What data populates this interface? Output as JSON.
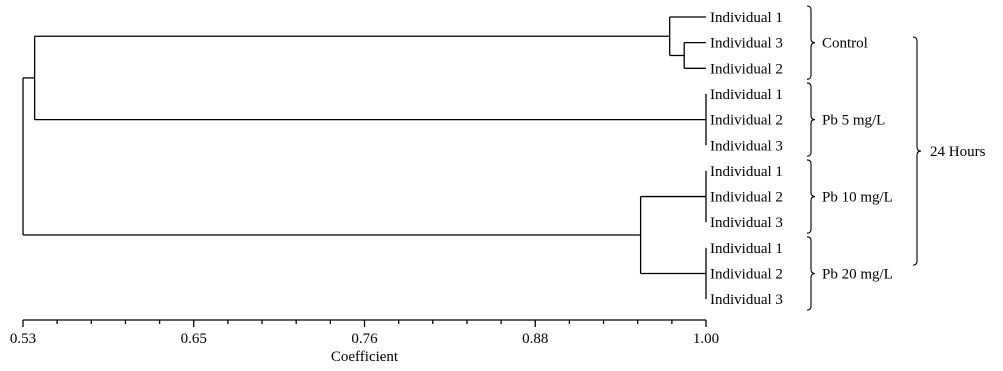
{
  "figure": {
    "leaves": [
      {
        "label": "Individual 1",
        "group": "Control"
      },
      {
        "label": "Individual 3",
        "group": "Control"
      },
      {
        "label": "Individual 2",
        "group": "Control"
      },
      {
        "label": "Individual 1",
        "group": "Pb 5 mg/L"
      },
      {
        "label": "Individual 2",
        "group": "Pb 5 mg/L"
      },
      {
        "label": "Individual 3",
        "group": "Pb 5 mg/L"
      },
      {
        "label": "Individual 1",
        "group": "Pb 10 mg/L"
      },
      {
        "label": "Individual 2",
        "group": "Pb 10 mg/L"
      },
      {
        "label": "Individual 3",
        "group": "Pb 10 mg/L"
      },
      {
        "label": "Individual 1",
        "group": "Pb 20 mg/L"
      },
      {
        "label": "Individual 2",
        "group": "Pb 20 mg/L"
      },
      {
        "label": "Individual 3",
        "group": "Pb 20 mg/L"
      }
    ],
    "groups": [
      {
        "name": "Control",
        "members": [
          0,
          1,
          2
        ]
      },
      {
        "name": "Pb 5 mg/L",
        "members": [
          3,
          4,
          5
        ]
      },
      {
        "name": "Pb 10 mg/L",
        "members": [
          6,
          7,
          8
        ]
      },
      {
        "name": "Pb 20 mg/L",
        "members": [
          9,
          10,
          11
        ]
      }
    ],
    "outer_group": {
      "name": "24 Hours",
      "members": [
        0,
        1,
        2,
        3,
        4,
        5,
        6,
        7,
        8,
        9,
        10,
        11
      ]
    },
    "clusters": [
      {
        "id": "c_ctrl_13",
        "children": [
          "leaf1",
          "leaf2"
        ],
        "coefficient": 0.985
      },
      {
        "id": "c_ctrl",
        "children": [
          "leaf0",
          "c_ctrl_13"
        ],
        "coefficient": 0.975
      },
      {
        "id": "c_pb5",
        "children": [
          "leaf3",
          "leaf4",
          "leaf5"
        ],
        "coefficient": 1.0
      },
      {
        "id": "c_pb10",
        "children": [
          "leaf6",
          "leaf7",
          "leaf8"
        ],
        "coefficient": 1.0
      },
      {
        "id": "c_pb20",
        "children": [
          "leaf9",
          "leaf10",
          "leaf11"
        ],
        "coefficient": 1.0
      },
      {
        "id": "c_ctrl_pb5",
        "children": [
          "c_ctrl",
          "c_pb5"
        ],
        "coefficient": 0.538
      },
      {
        "id": "c_pb10_pb20",
        "children": [
          "c_pb10",
          "c_pb20"
        ],
        "coefficient": 0.955
      },
      {
        "id": "c_root",
        "children": [
          "c_ctrl_pb5",
          "c_pb10_pb20"
        ],
        "coefficient": 0.53
      }
    ],
    "axis": {
      "title": "Coefficient",
      "range": [
        0.53,
        1.0
      ],
      "ticks": [
        {
          "value": 0.53,
          "label": "0.53"
        },
        {
          "value": 0.6475,
          "label": "0.65"
        },
        {
          "value": 0.765,
          "label": "0.76"
        },
        {
          "value": 0.8825,
          "label": "0.88"
        },
        {
          "value": 1.0,
          "label": "1.00"
        }
      ],
      "minor_ticks_per_major": 5
    }
  }
}
